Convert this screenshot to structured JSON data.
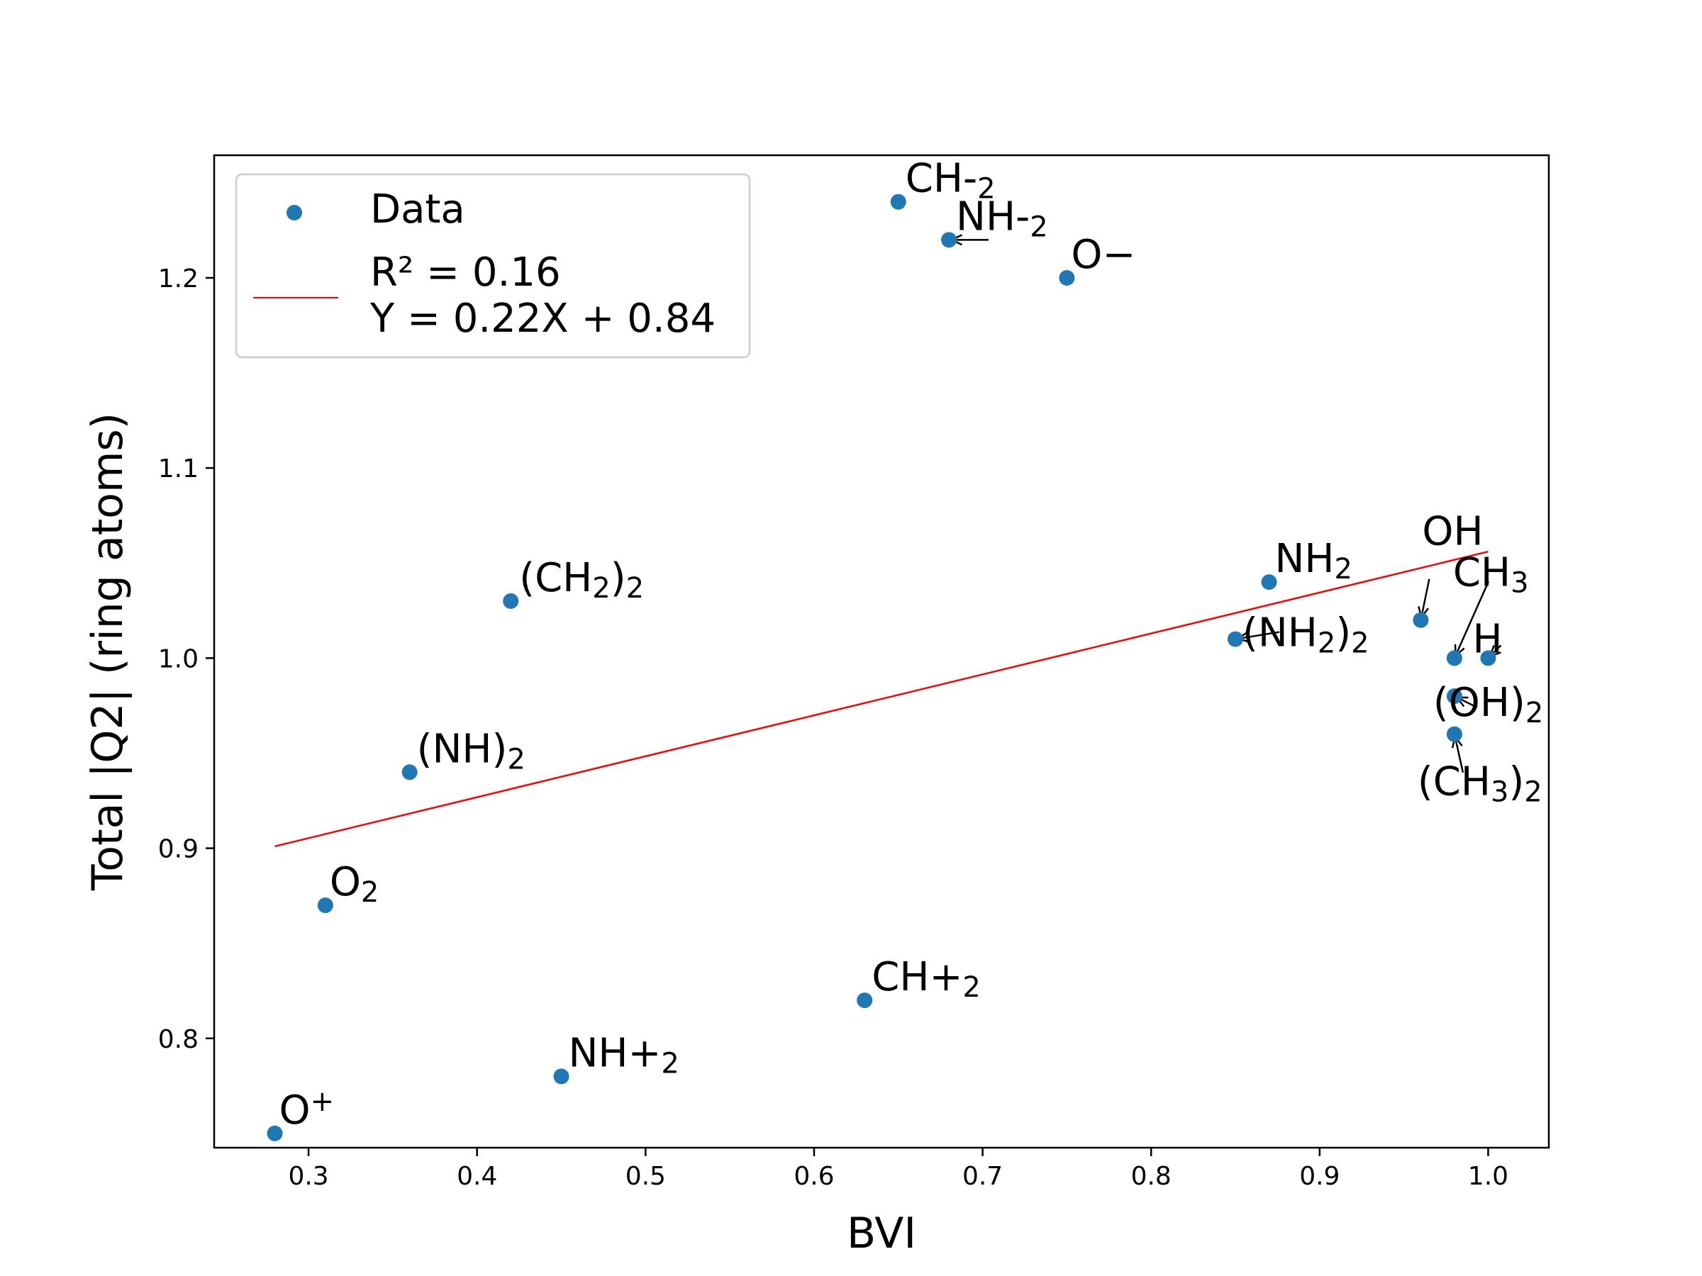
{
  "chart_data": {
    "type": "scatter",
    "xlabel": "BVI",
    "ylabel": "Total |Q2| (ring atoms)",
    "xlim": [
      0.244,
      1.036
    ],
    "ylim": [
      0.7425,
      1.2645
    ],
    "xticks": [
      "0.3",
      "0.4",
      "0.5",
      "0.6",
      "0.7",
      "0.8",
      "0.9",
      "1.0"
    ],
    "yticks": [
      "0.8",
      "0.9",
      "1.0",
      "1.1",
      "1.2"
    ],
    "grid": false,
    "legend_position": "upper-left",
    "colors": {
      "points": "#1f77b4",
      "fit_line": "#ff0000",
      "frame": "#000000"
    },
    "series": [
      {
        "name": "Data",
        "points": [
          {
            "x": 0.65,
            "y": 1.24,
            "label": [
              "CH-",
              "2"
            ]
          },
          {
            "x": 0.68,
            "y": 1.22,
            "label": [
              "NH-",
              "2"
            ]
          },
          {
            "x": 0.75,
            "y": 1.2,
            "label": [
              "O−"
            ]
          },
          {
            "x": 0.42,
            "y": 1.03,
            "label": [
              "(CH",
              "2",
              ")",
              "2"
            ]
          },
          {
            "x": 0.87,
            "y": 1.04,
            "label": [
              "NH",
              "2"
            ]
          },
          {
            "x": 0.85,
            "y": 1.01,
            "label": [
              "(NH",
              "2",
              ")",
              "2"
            ]
          },
          {
            "x": 0.96,
            "y": 1.02,
            "label": [
              "OH"
            ]
          },
          {
            "x": 0.98,
            "y": 1.0,
            "label": [
              "CH",
              "3"
            ]
          },
          {
            "x": 1.0,
            "y": 1.0,
            "label": [
              "H"
            ]
          },
          {
            "x": 0.98,
            "y": 0.98,
            "label": [
              "(OH)",
              "2"
            ]
          },
          {
            "x": 0.98,
            "y": 0.96,
            "label": [
              "(CH",
              "3",
              ")",
              "2"
            ]
          },
          {
            "x": 0.36,
            "y": 0.94,
            "label": [
              "(NH)",
              "2"
            ]
          },
          {
            "x": 0.31,
            "y": 0.87,
            "label": [
              "O",
              "2"
            ]
          },
          {
            "x": 0.63,
            "y": 0.82,
            "label": [
              "CH+",
              "2"
            ]
          },
          {
            "x": 0.45,
            "y": 0.78,
            "label": [
              "NH+",
              "2"
            ]
          },
          {
            "x": 0.28,
            "y": 0.75,
            "label": [
              "O",
              "+"
            ],
            "superscript": true
          }
        ]
      }
    ],
    "fit_line": {
      "legend_lines": [
        "R² = 0.16",
        "Y = 0.22X + 0.84"
      ],
      "x": [
        0.28,
        1.0
      ],
      "y": [
        0.901,
        1.056
      ]
    }
  }
}
